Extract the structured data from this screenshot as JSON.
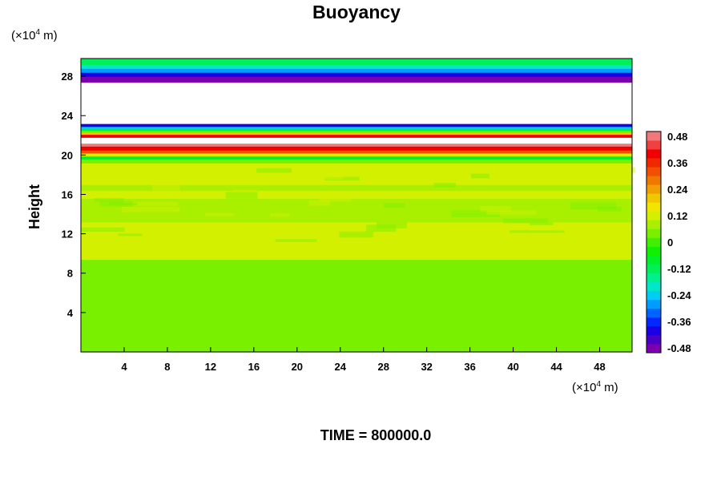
{
  "chart_data": {
    "type": "heatmap",
    "title": "Buoyancy",
    "ylabel": "Height",
    "xlabel": "",
    "x_unit_prefix": "(×10",
    "x_unit_exp": "4",
    "x_unit_suffix": " m)",
    "y_unit_prefix": "(×10",
    "y_unit_exp": "4",
    "y_unit_suffix": " m)",
    "xlim": [
      0,
      51
    ],
    "ylim": [
      0,
      29.8
    ],
    "x_ticks": [
      "4",
      "8",
      "12",
      "16",
      "20",
      "24",
      "28",
      "32",
      "36",
      "40",
      "44",
      "48"
    ],
    "y_ticks": [
      "4",
      "8",
      "12",
      "16",
      "20",
      "24",
      "28"
    ],
    "x_tick_values": [
      4,
      8,
      12,
      16,
      20,
      24,
      28,
      32,
      36,
      40,
      44,
      48
    ],
    "y_tick_values": [
      4,
      8,
      12,
      16,
      20,
      24,
      28
    ],
    "bands": [
      {
        "y0": 0.0,
        "y1": 9.4,
        "value": 0.02
      },
      {
        "y0": 9.4,
        "y1": 10.0,
        "value": 0.1
      },
      {
        "y0": 10.0,
        "y1": 10.6,
        "value": 0.13
      },
      {
        "y0": 10.6,
        "y1": 11.4,
        "value": 0.1
      },
      {
        "y0": 11.4,
        "y1": 13.2,
        "value": 0.1
      },
      {
        "y0": 13.2,
        "y1": 14.0,
        "value": 0.07
      },
      {
        "y0": 14.0,
        "y1": 15.6,
        "value": 0.08
      },
      {
        "y0": 15.6,
        "y1": 16.4,
        "value": 0.1
      },
      {
        "y0": 16.4,
        "y1": 17.0,
        "value": 0.06
      },
      {
        "y0": 17.0,
        "y1": 19.2,
        "value": 0.1
      },
      {
        "y0": 19.2,
        "y1": 19.6,
        "value": 0.02
      },
      {
        "y0": 19.6,
        "y1": 19.9,
        "value": -0.08
      },
      {
        "y0": 19.9,
        "y1": 20.2,
        "value": 0.1
      },
      {
        "y0": 20.2,
        "y1": 20.5,
        "value": 0.3
      },
      {
        "y0": 20.5,
        "y1": 20.9,
        "value": 0.42
      },
      {
        "y0": 20.9,
        "y1": 21.2,
        "value": 0.5
      },
      {
        "y0": 21.2,
        "y1": 21.8,
        "value": null
      },
      {
        "y0": 21.8,
        "y1": 22.1,
        "value": 0.42
      },
      {
        "y0": 22.1,
        "y1": 22.3,
        "value": 0.2
      },
      {
        "y0": 22.3,
        "y1": 22.5,
        "value": 0.05
      },
      {
        "y0": 22.5,
        "y1": 22.7,
        "value": -0.1
      },
      {
        "y0": 22.7,
        "y1": 22.9,
        "value": -0.25
      },
      {
        "y0": 22.9,
        "y1": 23.2,
        "value": -0.42
      },
      {
        "y0": 23.2,
        "y1": 27.4,
        "value": null
      },
      {
        "y0": 27.4,
        "y1": 28.0,
        "value": -0.48
      },
      {
        "y0": 28.0,
        "y1": 28.4,
        "value": -0.4
      },
      {
        "y0": 28.4,
        "y1": 28.8,
        "value": -0.3
      },
      {
        "y0": 28.8,
        "y1": 29.2,
        "value": -0.2
      },
      {
        "y0": 29.2,
        "y1": 29.8,
        "value": -0.12
      }
    ],
    "colorbar": {
      "min": -0.48,
      "max": 0.48,
      "step": 0.04,
      "tick_labels": [
        "0.48",
        "0.36",
        "0.24",
        "0.12",
        "0",
        "-0.12",
        "-0.24",
        "-0.36",
        "-0.48"
      ],
      "tick_values": [
        0.48,
        0.36,
        0.24,
        0.12,
        0,
        -0.12,
        -0.24,
        -0.36,
        -0.48
      ],
      "colors": [
        "#7a00b0",
        "#4b00c8",
        "#1a00e6",
        "#0028ff",
        "#0064ff",
        "#009cff",
        "#00cdf2",
        "#00e8c8",
        "#00f090",
        "#00f05a",
        "#00f02c",
        "#10f000",
        "#40f000",
        "#78f000",
        "#a8f000",
        "#d2f000",
        "#f0e600",
        "#f0c800",
        "#f0a000",
        "#f07800",
        "#f05000",
        "#f02800",
        "#f00000",
        "#f04040",
        "#f07878"
      ]
    },
    "annotation": "TIME = 800000.0"
  }
}
